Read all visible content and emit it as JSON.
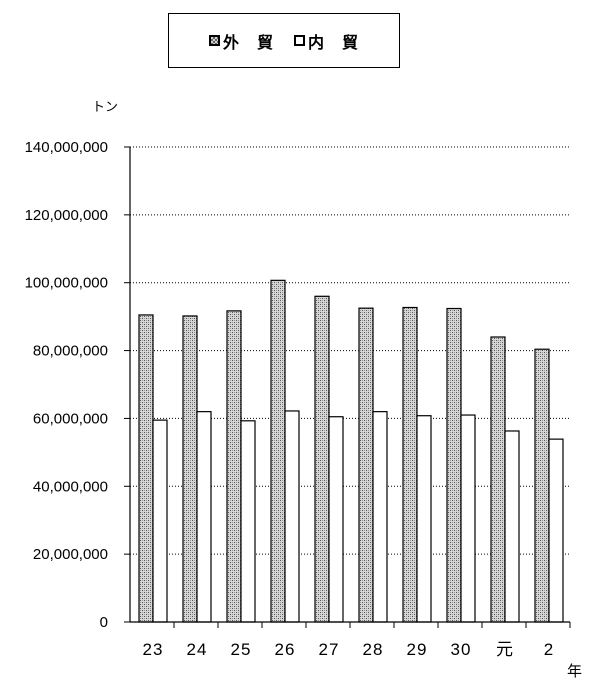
{
  "legend": {
    "outer_label": "外　貿",
    "inner_label": "内　貿"
  },
  "unit_label": "トン",
  "x_unit_label": "年",
  "chart_data": {
    "type": "bar",
    "categories": [
      "23",
      "24",
      "25",
      "26",
      "27",
      "28",
      "29",
      "30",
      "元",
      "2"
    ],
    "series": [
      {
        "name": "外　貿",
        "values": [
          90500000,
          90200000,
          91700000,
          100700000,
          96000000,
          92500000,
          92700000,
          92400000,
          84000000,
          80400000
        ]
      },
      {
        "name": "内　貿",
        "values": [
          59500000,
          62000000,
          59300000,
          62200000,
          60500000,
          62000000,
          60800000,
          61000000,
          56300000,
          53900000
        ]
      }
    ],
    "ylabel": "トン",
    "xlabel": "年",
    "ylim": [
      0,
      140000000
    ],
    "yticks": [
      0,
      20000000,
      40000000,
      60000000,
      80000000,
      100000000,
      120000000,
      140000000
    ],
    "ytick_labels": [
      "0",
      "20,000,000",
      "40,000,000",
      "60,000,000",
      "80,000,000",
      "100,000,000",
      "120,000,000",
      "140,000,000"
    ],
    "grid": "horizontal-dotted",
    "legend_position": "top-center"
  }
}
